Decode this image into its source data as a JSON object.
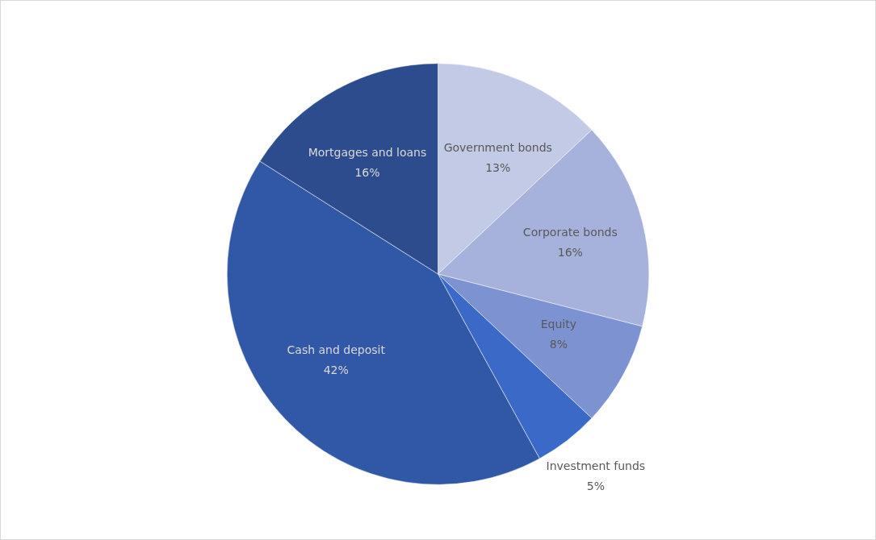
{
  "chart_data": {
    "type": "pie",
    "categories": [
      "Government bonds",
      "Corporate bonds",
      "Equity",
      "Investment funds",
      "Cash and deposit",
      "Mortgages and loans"
    ],
    "values": [
      13,
      16,
      8,
      5,
      42,
      16
    ],
    "value_labels": [
      "13%",
      "16%",
      "8%",
      "5%",
      "42%",
      "16%"
    ],
    "colors": [
      "#c3cae5",
      "#a6b2db",
      "#7c92d1",
      "#3a69c7",
      "#3157a7",
      "#2d4c8e"
    ],
    "legend": false
  }
}
